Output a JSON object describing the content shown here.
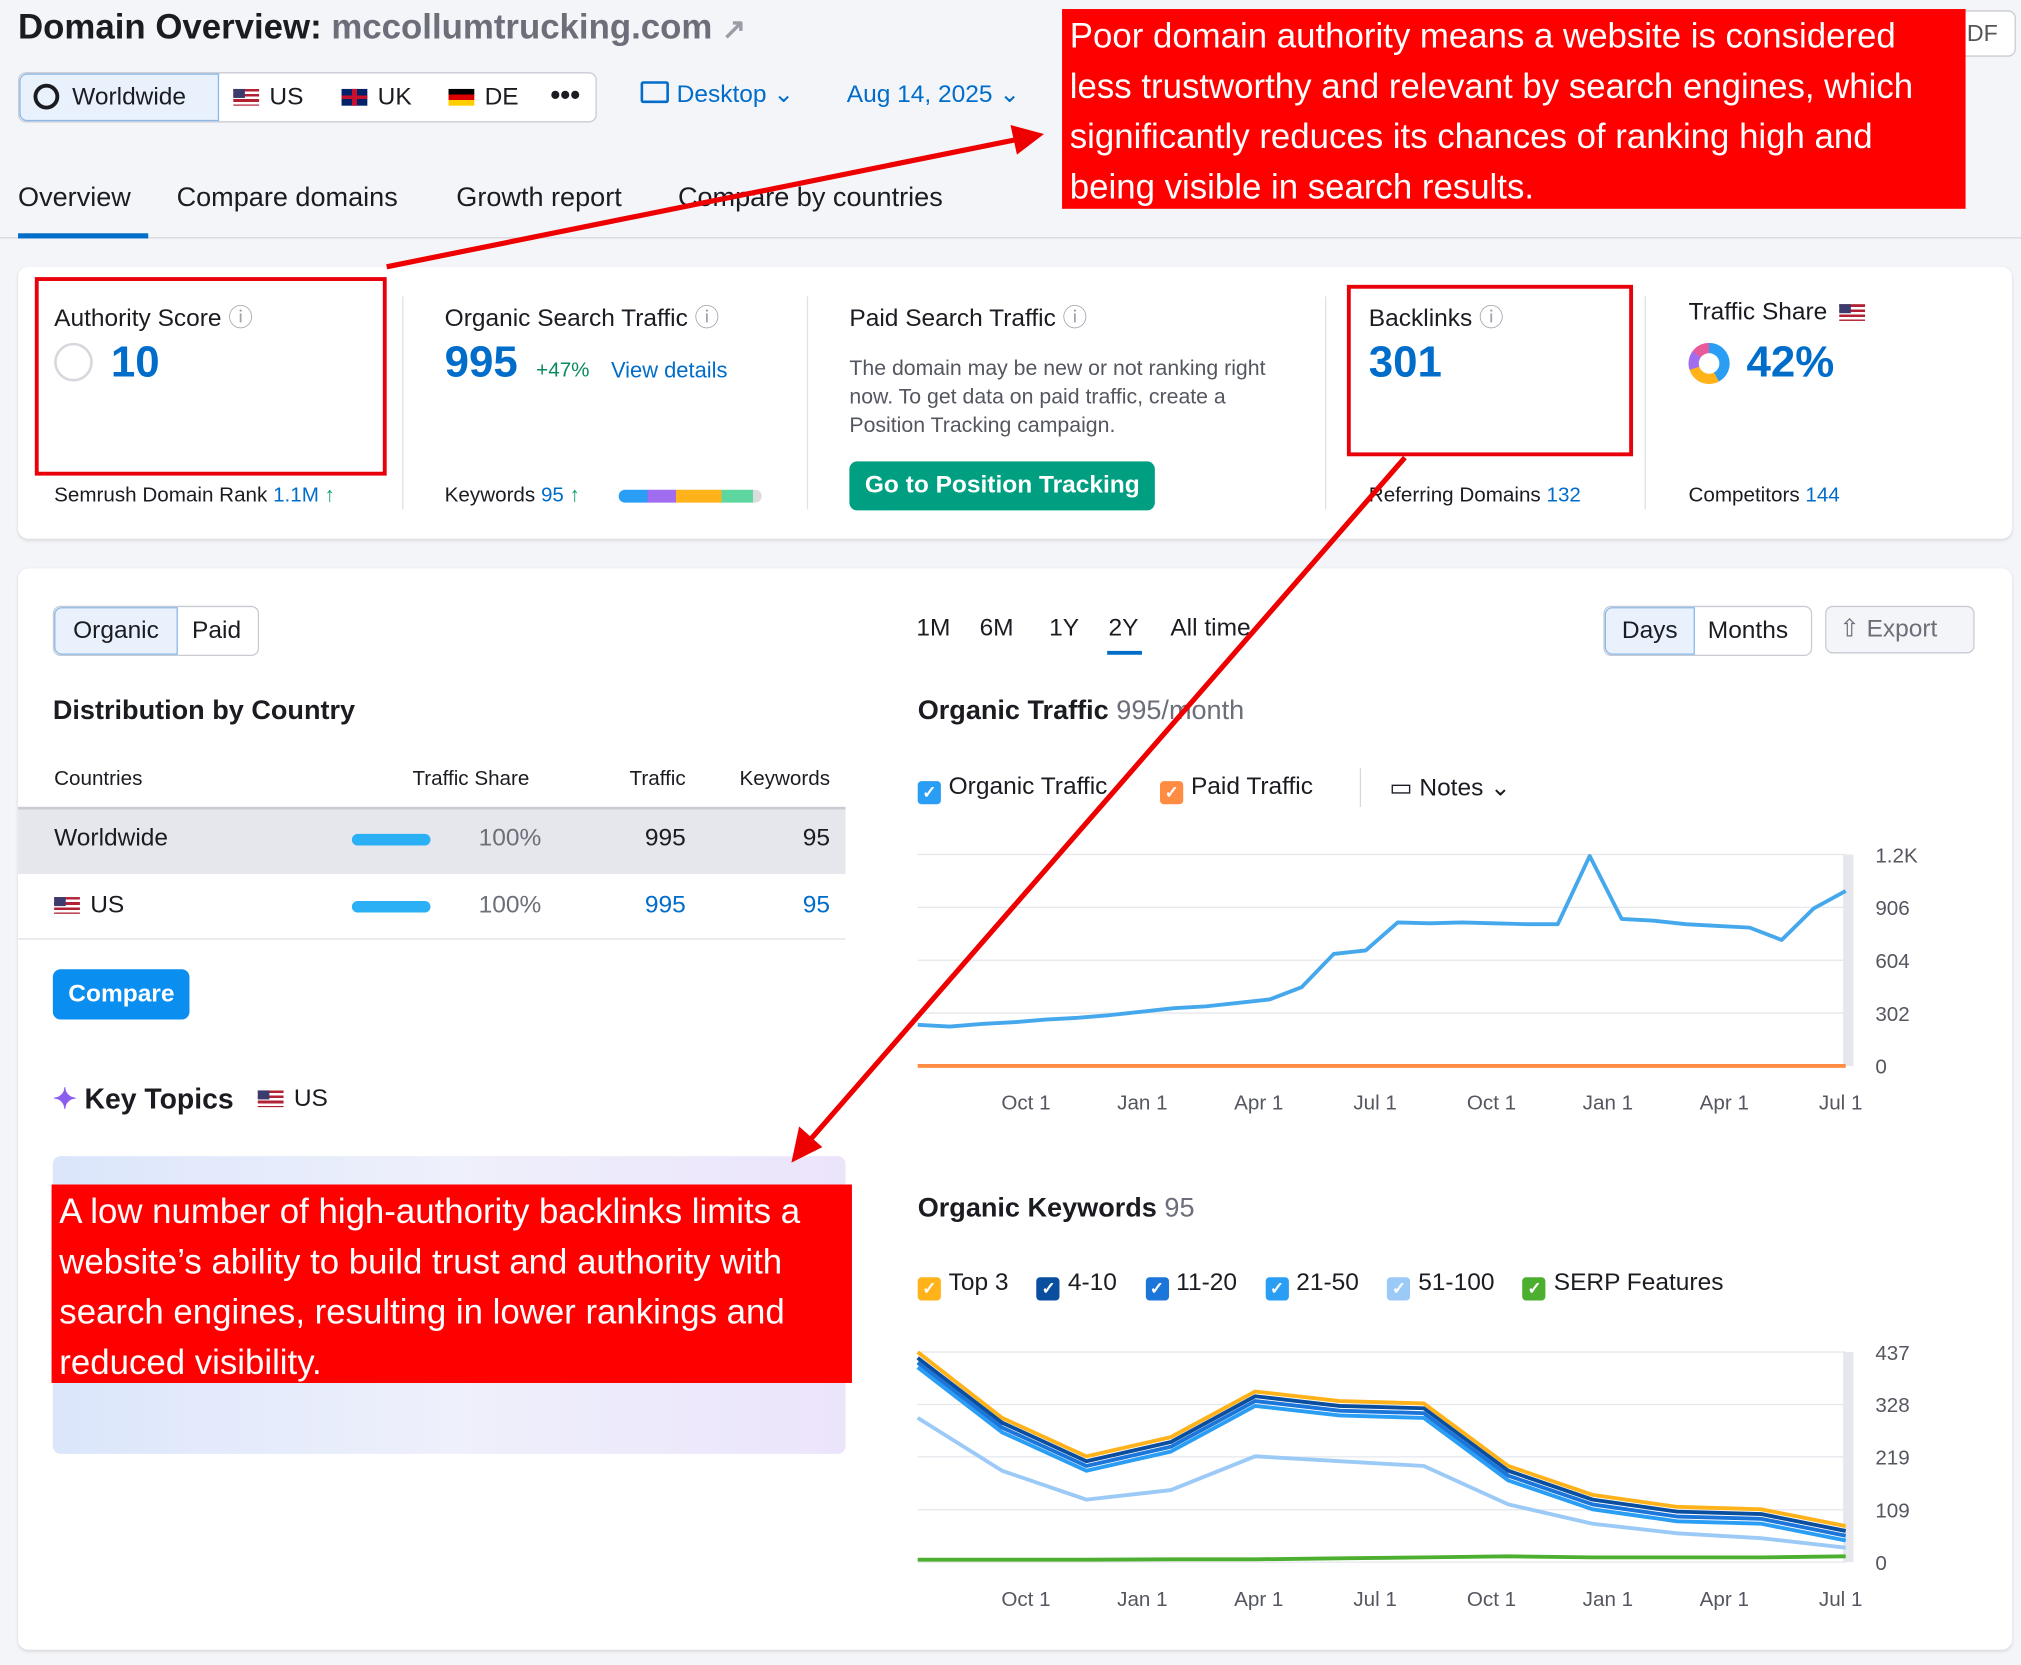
{
  "header": {
    "title": "Domain Overview:",
    "domain": "mccollumtrucking.com",
    "pdf": "PDF"
  },
  "db_tabs": [
    "Worldwide",
    "US",
    "UK",
    "DE"
  ],
  "device": "Desktop",
  "date": "Aug 14, 2025",
  "nav": [
    "Overview",
    "Compare domains",
    "Growth report",
    "Compare by countries"
  ],
  "metrics": {
    "authority": {
      "label": "Authority Score",
      "value": "10",
      "footer_label": "Semrush Domain Rank",
      "footer_value": "1.1M"
    },
    "organic": {
      "label": "Organic Search Traffic",
      "value": "995",
      "change": "+47%",
      "link": "View details",
      "footer_label": "Keywords",
      "footer_value": "95"
    },
    "paid": {
      "label": "Paid Search Traffic",
      "message": "The domain may be new or not ranking right now. To get data on paid traffic, create a Position Tracking campaign.",
      "button": "Go to Position Tracking"
    },
    "backlinks": {
      "label": "Backlinks",
      "value": "301",
      "footer_label": "Referring Domains",
      "footer_value": "132"
    },
    "traffic_share": {
      "label": "Traffic Share",
      "value": "42%",
      "footer_label": "Competitors",
      "footer_value": "144"
    }
  },
  "toggle": [
    "Organic",
    "Paid"
  ],
  "periods": [
    "1M",
    "6M",
    "1Y",
    "2Y",
    "All time"
  ],
  "granularity": [
    "Days",
    "Months"
  ],
  "export": "Export",
  "distribution": {
    "title": "Distribution by Country",
    "columns": [
      "Countries",
      "Traffic Share",
      "Traffic",
      "Keywords"
    ],
    "rows": [
      [
        "Worldwide",
        "100%",
        "995",
        "95"
      ],
      [
        "US",
        "100%",
        "995",
        "95"
      ]
    ],
    "button": "Compare"
  },
  "key_topics": {
    "title": "Key Topics",
    "country": "US"
  },
  "traffic_chart": {
    "type": "line",
    "title": "Organic Traffic",
    "subtitle": "995/month",
    "notes": "Notes",
    "x_labels": [
      "Oct 1",
      "Jan 1",
      "Apr 1",
      "Jul 1",
      "Oct 1",
      "Jan 1",
      "Apr 1",
      "Jul 1"
    ],
    "ylim": [
      0,
      1208
    ],
    "yticks": [
      0,
      302,
      604,
      906,
      {
        "value": 1208,
        "label": "1.2K"
      }
    ],
    "grid": true,
    "series": [
      {
        "name": "Organic Traffic",
        "color": "#45a8ec",
        "values": [
          235,
          225,
          240,
          250,
          265,
          275,
          290,
          310,
          330,
          340,
          360,
          380,
          450,
          640,
          660,
          820,
          815,
          820,
          815,
          810,
          810,
          1200,
          840,
          830,
          810,
          800,
          790,
          720,
          900,
          1000
        ]
      },
      {
        "name": "Paid Traffic",
        "color": "#ff8c42",
        "values": [
          0,
          0,
          0,
          0,
          0,
          0,
          0,
          0,
          0,
          0,
          0,
          0,
          0,
          0,
          0,
          0,
          0,
          0,
          0,
          0,
          0,
          0,
          0,
          0,
          0,
          0,
          0,
          0,
          0,
          0
        ]
      }
    ]
  },
  "keywords_chart": {
    "type": "line",
    "title": "Organic Keywords",
    "subtitle": "95",
    "x_labels": [
      "Oct 1",
      "Jan 1",
      "Apr 1",
      "Jul 1",
      "Oct 1",
      "Jan 1",
      "Apr 1",
      "Jul 1"
    ],
    "ylim": [
      0,
      437
    ],
    "yticks": [
      0,
      109,
      219,
      328,
      437
    ],
    "grid": true,
    "series": [
      {
        "name": "Top 3",
        "color": "#ffb21a",
        "values": [
          437,
          300,
          220,
          260,
          355,
          335,
          330,
          200,
          140,
          115,
          110,
          75
        ]
      },
      {
        "name": "4-10",
        "color": "#0a4ea0",
        "values": [
          425,
          290,
          210,
          250,
          345,
          325,
          320,
          190,
          130,
          105,
          100,
          65
        ]
      },
      {
        "name": "11-20",
        "color": "#1c75d8",
        "values": [
          415,
          280,
          200,
          240,
          335,
          315,
          310,
          180,
          120,
          95,
          90,
          55
        ]
      },
      {
        "name": "21-50",
        "color": "#2a9df4",
        "values": [
          405,
          270,
          190,
          230,
          325,
          305,
          300,
          170,
          110,
          85,
          80,
          45
        ]
      },
      {
        "name": "51-100",
        "color": "#9ccaf7",
        "values": [
          300,
          190,
          130,
          150,
          220,
          210,
          200,
          120,
          80,
          60,
          50,
          30
        ]
      },
      {
        "name": "SERP Features",
        "color": "#4caf2f",
        "values": [
          5,
          5,
          5,
          6,
          6,
          8,
          10,
          12,
          10,
          10,
          10,
          12
        ]
      }
    ]
  },
  "annotations": [
    "Poor domain authority means a website is considered less trustworthy and relevant by search engines, which significantly reduces its chances of ranking high and being visible in search results.",
    "A low number of high-authority backlinks limits a website’s ability to build trust and authority with search engines, resulting in lower rankings and reduced visibility."
  ]
}
